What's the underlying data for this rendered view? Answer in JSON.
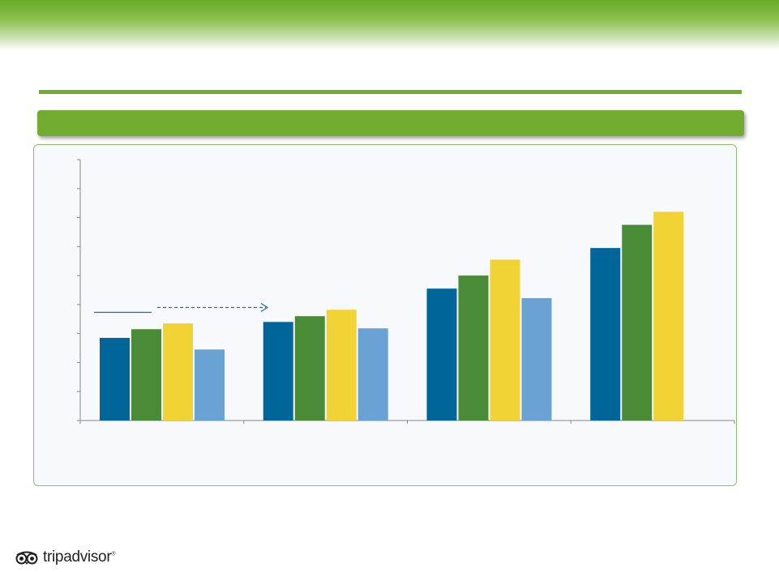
{
  "brand": {
    "logo_text": "tripadvisor",
    "registered_mark": "®"
  },
  "colors": {
    "banner": "#6aaa28",
    "rule": "#74ab31",
    "header_bar": "#71ab30",
    "panel_border": "#8cc066"
  },
  "chart_data": {
    "type": "bar",
    "categories": [
      "",
      "",
      "",
      ""
    ],
    "series": [
      {
        "values": [
          2.85,
          3.4,
          4.55,
          5.95
        ],
        "color": "#006699"
      },
      {
        "values": [
          3.15,
          3.6,
          5.0,
          6.75
        ],
        "color": "#4a8b38"
      },
      {
        "values": [
          3.35,
          3.82,
          5.55,
          7.2
        ],
        "color": "#f2d335"
      },
      {
        "values": [
          2.45,
          3.18,
          4.22,
          null
        ],
        "color": "#6aa2d4"
      }
    ],
    "ylim": [
      0,
      9
    ],
    "yticks": [
      0,
      1,
      2,
      3,
      4,
      5,
      6,
      7,
      8,
      9
    ],
    "grid": false,
    "legend": "none",
    "annotation": {
      "y": 3.9,
      "style": "solid line then dashed arrow"
    }
  }
}
